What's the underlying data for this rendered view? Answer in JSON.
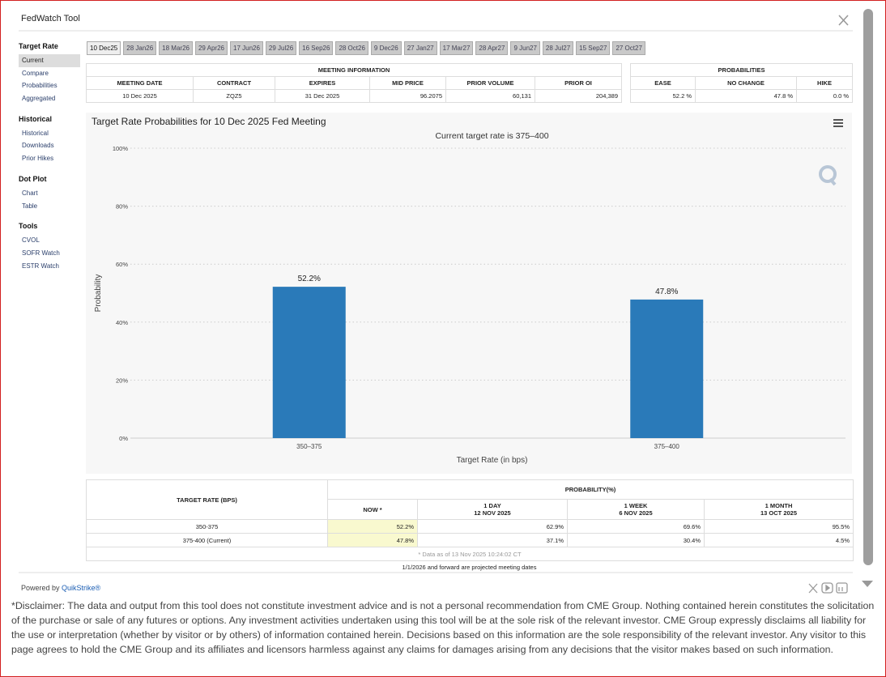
{
  "header": {
    "title": "FedWatch Tool"
  },
  "sidebar": [
    {
      "title": "Target Rate",
      "items": [
        "Current",
        "Compare",
        "Probabilities",
        "Aggregated"
      ]
    },
    {
      "title": "Historical",
      "items": [
        "Historical",
        "Downloads",
        "Prior Hikes"
      ]
    },
    {
      "title": "Dot Plot",
      "items": [
        "Chart",
        "Table"
      ]
    },
    {
      "title": "Tools",
      "items": [
        "CVOL",
        "SOFR Watch",
        "ESTR Watch"
      ]
    }
  ],
  "tabs": [
    "10 Dec25",
    "28 Jan26",
    "18 Mar26",
    "29 Apr26",
    "17 Jun26",
    "29 Jul26",
    "16 Sep26",
    "28 Oct26",
    "9 Dec26",
    "27 Jan27",
    "17 Mar27",
    "28 Apr27",
    "9 Jun27",
    "28 Jul27",
    "15 Sep27",
    "27 Oct27"
  ],
  "meeting_info": {
    "title": "MEETING INFORMATION",
    "columns": [
      "MEETING DATE",
      "CONTRACT",
      "EXPIRES",
      "MID PRICE",
      "PRIOR VOLUME",
      "PRIOR OI"
    ],
    "row": [
      "10 Dec 2025",
      "ZQZ5",
      "31 Dec 2025",
      "96.2075",
      "60,131",
      "204,389"
    ]
  },
  "probabilities": {
    "title": "PROBABILITIES",
    "columns": [
      "EASE",
      "NO CHANGE",
      "HIKE"
    ],
    "row": [
      "52.2 %",
      "47.8 %",
      "0.0 %"
    ]
  },
  "chart_data": {
    "type": "bar",
    "title": "Target Rate Probabilities for 10 Dec 2025 Fed Meeting",
    "subtitle": "Current target rate is 375–400",
    "x_label": "Target Rate (in bps)",
    "y_label": "Probability",
    "categories": [
      "350–375",
      "375–400"
    ],
    "values": [
      52.2,
      47.8
    ],
    "value_labels": [
      "52.2%",
      "47.8%"
    ],
    "color": "#2a7ab9",
    "ylim": [
      0,
      100
    ],
    "yticks": [
      {
        "value": 0,
        "label": "0%"
      },
      {
        "value": 20,
        "label": "20%"
      },
      {
        "value": 40,
        "label": "40%"
      },
      {
        "value": 60,
        "label": "60%"
      },
      {
        "value": 80,
        "label": "80%"
      },
      {
        "value": 100,
        "label": "100%"
      }
    ],
    "grid": true
  },
  "probability_table": {
    "row_header": "TARGET RATE (BPS)",
    "group_header": "PROBABILITY(%)",
    "columns": [
      {
        "label": "NOW *"
      },
      {
        "label": "1 DAY",
        "date": "12 NOV 2025"
      },
      {
        "label": "1 WEEK",
        "date": "6 NOV 2025"
      },
      {
        "label": "1 MONTH",
        "date": "13 OCT 2025"
      }
    ],
    "rows": [
      [
        "350-375",
        "52.2%",
        "62.9%",
        "69.6%",
        "95.5%"
      ],
      [
        "375-400 (Current)",
        "47.8%",
        "37.1%",
        "30.4%",
        "4.5%"
      ]
    ],
    "note": "* Data as of 13 Nov 2025 10:24:02 CT"
  },
  "projection_note": "1/1/2026 and forward are projected meeting dates",
  "footer": {
    "powered_by": "Powered by",
    "brand": "QuikStrike®"
  },
  "disclaimer": "*Disclaimer: The data and output from this tool does not constitute investment advice and is not a personal recommendation from CME Group.  Nothing contained herein constitutes the solicitation of the purchase or sale of any futures or options.  Any investment activities undertaken using this tool will be at the sole risk of the relevant investor.  CME Group expressly disclaims all liability for the use or interpretation (whether by visitor or by others) of information contained herein. Decisions based on this information are the sole responsibility of the relevant investor.  Any visitor to this page agrees to hold the CME Group and its affiliates and licensors harmless against any claims for damages arising from any decisions that the visitor makes based on such information."
}
